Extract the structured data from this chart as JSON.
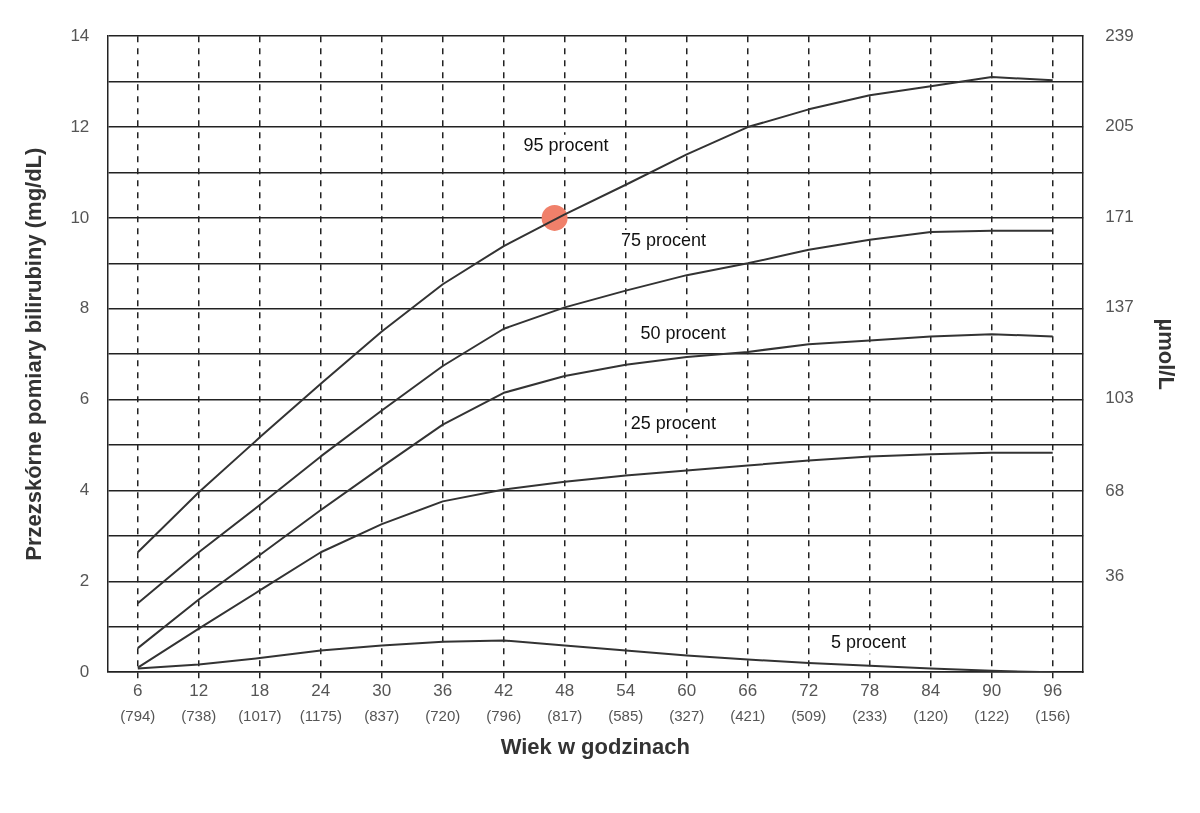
{
  "chart_data": {
    "type": "line",
    "ylabel": "Przezskórne pomiary bilirubiny (mg/dL)",
    "xlabel": "Wiek w godzinach",
    "y2label": "µmol/L",
    "x": [
      6,
      12,
      18,
      24,
      30,
      36,
      42,
      48,
      54,
      60,
      66,
      72,
      78,
      84,
      90,
      96
    ],
    "xlim": [
      3,
      99
    ],
    "xticks": [
      6,
      12,
      18,
      24,
      30,
      36,
      42,
      48,
      54,
      60,
      66,
      72,
      78,
      84,
      90,
      96
    ],
    "annotations": [
      "(794)",
      "(738)",
      "(1017)",
      "(1175)",
      "(837)",
      "(720)",
      "(796)",
      "(817)",
      "(585)",
      "(327)",
      "(421)",
      "(509)",
      "(233)",
      "(120)",
      "(122)",
      "(156)"
    ],
    "ylim": [
      0,
      14
    ],
    "yticks": [
      0,
      {
        "value": 1,
        "label": null
      },
      2,
      {
        "value": 3,
        "label": null
      },
      4,
      {
        "value": 5,
        "label": null
      },
      6,
      {
        "value": 7,
        "label": null
      },
      8,
      {
        "value": 9,
        "label": null
      },
      10,
      {
        "value": 11,
        "label": null
      },
      12,
      {
        "value": 13,
        "label": null
      },
      14
    ],
    "y2lim": [
      0,
      239
    ],
    "y2ticks": [
      36,
      68,
      103,
      137,
      171,
      205,
      239
    ],
    "grid": true,
    "legend": false,
    "marker": "none",
    "series": [
      {
        "name": "95 procent",
        "color": "#333333",
        "values": [
          2.64,
          3.96,
          5.17,
          6.35,
          7.5,
          8.54,
          9.38,
          10.08,
          10.73,
          11.4,
          12.0,
          12.39,
          12.7,
          12.9,
          13.1,
          13.03
        ]
      },
      {
        "name": "75 procent",
        "color": "#333333",
        "values": [
          1.52,
          2.64,
          3.68,
          4.75,
          5.76,
          6.74,
          7.56,
          8.03,
          8.4,
          8.74,
          9.0,
          9.3,
          9.52,
          9.69,
          9.72,
          9.72
        ]
      },
      {
        "name": "50 procent",
        "color": "#333333",
        "values": [
          0.53,
          1.6,
          2.58,
          3.57,
          4.52,
          5.45,
          6.15,
          6.52,
          6.77,
          6.94,
          7.05,
          7.22,
          7.3,
          7.39,
          7.44,
          7.39
        ]
      },
      {
        "name": "25 procent",
        "color": "#333333",
        "values": [
          0.1,
          0.96,
          1.8,
          2.64,
          3.26,
          3.76,
          4.02,
          4.19,
          4.33,
          4.44,
          4.55,
          4.66,
          4.75,
          4.8,
          4.83,
          4.83
        ]
      },
      {
        "name": "5 procent",
        "color": "#333333",
        "values": [
          0.08,
          0.17,
          0.31,
          0.48,
          0.59,
          0.67,
          0.7,
          0.59,
          0.48,
          0.37,
          0.28,
          0.2,
          0.14,
          0.08,
          0.03,
          0
        ]
      },
      {
        "type": "scatter",
        "color": "#f0806a",
        "x": [
          47
        ],
        "values": [
          10
        ],
        "marker": "circle"
      }
    ]
  }
}
